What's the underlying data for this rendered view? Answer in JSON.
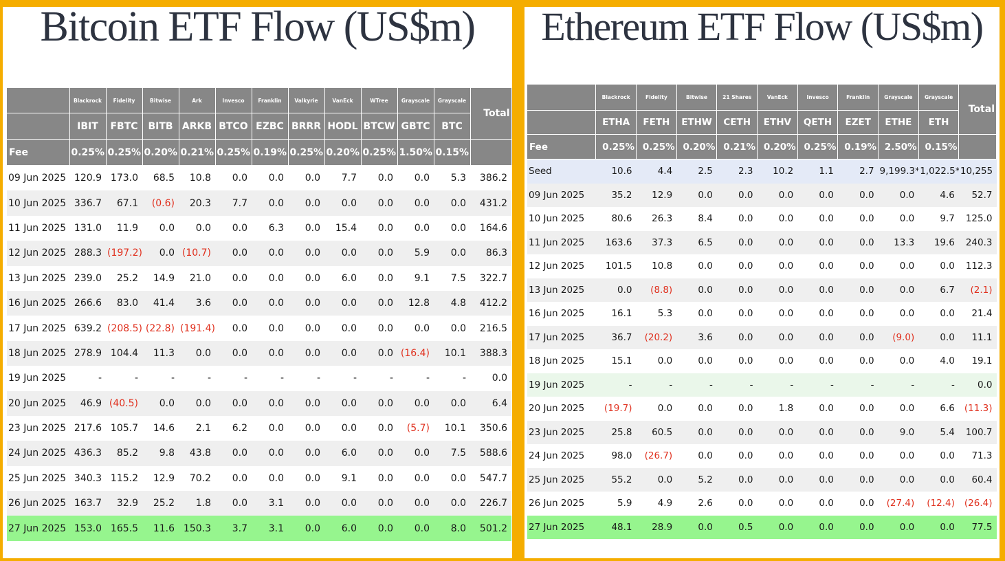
{
  "btc": {
    "title": "Bitcoin ETF Flow (US$m)",
    "total_label": "Total",
    "fee_label": "Fee",
    "issuers": [
      "Blackrock",
      "Fidelity",
      "Bitwise",
      "Ark",
      "Invesco",
      "Franklin",
      "Valkyrie",
      "VanEck",
      "WTree",
      "Grayscale",
      "Grayscale"
    ],
    "tickers": [
      "IBIT",
      "FBTC",
      "BITB",
      "ARKB",
      "BTCO",
      "EZBC",
      "BRRR",
      "HODL",
      "BTCW",
      "GBTC",
      "BTC"
    ],
    "fees": [
      "0.25%",
      "0.25%",
      "0.20%",
      "0.21%",
      "0.25%",
      "0.19%",
      "0.25%",
      "0.20%",
      "0.25%",
      "1.50%",
      "0.15%"
    ],
    "rows": [
      {
        "date": "09 Jun 2025",
        "values": [
          "120.9",
          "173.0",
          "68.5",
          "10.8",
          "0.0",
          "0.0",
          "0.0",
          "7.7",
          "0.0",
          "0.0",
          "5.3"
        ],
        "total": "386.2",
        "style": ""
      },
      {
        "date": "10 Jun 2025",
        "values": [
          "336.7",
          "67.1",
          "(0.6)",
          "20.3",
          "7.7",
          "0.0",
          "0.0",
          "0.0",
          "0.0",
          "0.0",
          "0.0"
        ],
        "total": "431.2",
        "style": ""
      },
      {
        "date": "11 Jun 2025",
        "values": [
          "131.0",
          "11.9",
          "0.0",
          "0.0",
          "0.0",
          "6.3",
          "0.0",
          "15.4",
          "0.0",
          "0.0",
          "0.0"
        ],
        "total": "164.6",
        "style": ""
      },
      {
        "date": "12 Jun 2025",
        "values": [
          "288.3",
          "(197.2)",
          "0.0",
          "(10.7)",
          "0.0",
          "0.0",
          "0.0",
          "0.0",
          "0.0",
          "5.9",
          "0.0"
        ],
        "total": "86.3",
        "style": ""
      },
      {
        "date": "13 Jun 2025",
        "values": [
          "239.0",
          "25.2",
          "14.9",
          "21.0",
          "0.0",
          "0.0",
          "0.0",
          "6.0",
          "0.0",
          "9.1",
          "7.5"
        ],
        "total": "322.7",
        "style": ""
      },
      {
        "date": "16 Jun 2025",
        "values": [
          "266.6",
          "83.0",
          "41.4",
          "3.6",
          "0.0",
          "0.0",
          "0.0",
          "0.0",
          "0.0",
          "12.8",
          "4.8"
        ],
        "total": "412.2",
        "style": ""
      },
      {
        "date": "17 Jun 2025",
        "values": [
          "639.2",
          "(208.5)",
          "(22.8)",
          "(191.4)",
          "0.0",
          "0.0",
          "0.0",
          "0.0",
          "0.0",
          "0.0",
          "0.0"
        ],
        "total": "216.5",
        "style": ""
      },
      {
        "date": "18 Jun 2025",
        "values": [
          "278.9",
          "104.4",
          "11.3",
          "0.0",
          "0.0",
          "0.0",
          "0.0",
          "0.0",
          "0.0",
          "(16.4)",
          "10.1"
        ],
        "total": "388.3",
        "style": ""
      },
      {
        "date": "19 Jun 2025",
        "values": [
          "-",
          "-",
          "-",
          "-",
          "-",
          "-",
          "-",
          "-",
          "-",
          "-",
          "-"
        ],
        "total": "0.0",
        "style": ""
      },
      {
        "date": "20 Jun 2025",
        "values": [
          "46.9",
          "(40.5)",
          "0.0",
          "0.0",
          "0.0",
          "0.0",
          "0.0",
          "0.0",
          "0.0",
          "0.0",
          "0.0"
        ],
        "total": "6.4",
        "style": ""
      },
      {
        "date": "23 Jun 2025",
        "values": [
          "217.6",
          "105.7",
          "14.6",
          "2.1",
          "6.2",
          "0.0",
          "0.0",
          "0.0",
          "0.0",
          "(5.7)",
          "10.1"
        ],
        "total": "350.6",
        "style": ""
      },
      {
        "date": "24 Jun 2025",
        "values": [
          "436.3",
          "85.2",
          "9.8",
          "43.8",
          "0.0",
          "0.0",
          "0.0",
          "6.0",
          "0.0",
          "0.0",
          "7.5"
        ],
        "total": "588.6",
        "style": ""
      },
      {
        "date": "25 Jun 2025",
        "values": [
          "340.3",
          "115.2",
          "12.9",
          "70.2",
          "0.0",
          "0.0",
          "0.0",
          "9.1",
          "0.0",
          "0.0",
          "0.0"
        ],
        "total": "547.7",
        "style": ""
      },
      {
        "date": "26 Jun 2025",
        "values": [
          "163.7",
          "32.9",
          "25.2",
          "1.8",
          "0.0",
          "3.1",
          "0.0",
          "0.0",
          "0.0",
          "0.0",
          "0.0"
        ],
        "total": "226.7",
        "style": ""
      },
      {
        "date": "27 Jun 2025",
        "values": [
          "153.0",
          "165.5",
          "11.6",
          "150.3",
          "3.7",
          "3.1",
          "0.0",
          "6.0",
          "0.0",
          "0.0",
          "8.0"
        ],
        "total": "501.2",
        "style": "latest"
      }
    ]
  },
  "eth": {
    "title": "Ethereum ETF Flow (US$m)",
    "total_label": "Total",
    "fee_label": "Fee",
    "issuers": [
      "Blackrock",
      "Fidelity",
      "Bitwise",
      "21 Shares",
      "VanEck",
      "Invesco",
      "Franklin",
      "Grayscale",
      "Grayscale"
    ],
    "tickers": [
      "ETHA",
      "FETH",
      "ETHW",
      "CETH",
      "ETHV",
      "QETH",
      "EZET",
      "ETHE",
      "ETH"
    ],
    "fees": [
      "0.25%",
      "0.25%",
      "0.20%",
      "0.21%",
      "0.20%",
      "0.25%",
      "0.19%",
      "2.50%",
      "0.15%"
    ],
    "rows": [
      {
        "date": "Seed",
        "values": [
          "10.6",
          "4.4",
          "2.5",
          "2.3",
          "10.2",
          "1.1",
          "2.7",
          "9,199.3*",
          "1,022.5*"
        ],
        "total": "10,255",
        "style": "seed"
      },
      {
        "date": "09 Jun 2025",
        "values": [
          "35.2",
          "12.9",
          "0.0",
          "0.0",
          "0.0",
          "0.0",
          "0.0",
          "0.0",
          "4.6"
        ],
        "total": "52.7",
        "style": ""
      },
      {
        "date": "10 Jun 2025",
        "values": [
          "80.6",
          "26.3",
          "8.4",
          "0.0",
          "0.0",
          "0.0",
          "0.0",
          "0.0",
          "9.7"
        ],
        "total": "125.0",
        "style": ""
      },
      {
        "date": "11 Jun 2025",
        "values": [
          "163.6",
          "37.3",
          "6.5",
          "0.0",
          "0.0",
          "0.0",
          "0.0",
          "13.3",
          "19.6"
        ],
        "total": "240.3",
        "style": ""
      },
      {
        "date": "12 Jun 2025",
        "values": [
          "101.5",
          "10.8",
          "0.0",
          "0.0",
          "0.0",
          "0.0",
          "0.0",
          "0.0",
          "0.0"
        ],
        "total": "112.3",
        "style": ""
      },
      {
        "date": "13 Jun 2025",
        "values": [
          "0.0",
          "(8.8)",
          "0.0",
          "0.0",
          "0.0",
          "0.0",
          "0.0",
          "0.0",
          "6.7"
        ],
        "total": "(2.1)",
        "style": ""
      },
      {
        "date": "16 Jun 2025",
        "values": [
          "16.1",
          "5.3",
          "0.0",
          "0.0",
          "0.0",
          "0.0",
          "0.0",
          "0.0",
          "0.0"
        ],
        "total": "21.4",
        "style": ""
      },
      {
        "date": "17 Jun 2025",
        "values": [
          "36.7",
          "(20.2)",
          "3.6",
          "0.0",
          "0.0",
          "0.0",
          "0.0",
          "(9.0)",
          "0.0"
        ],
        "total": "11.1",
        "style": ""
      },
      {
        "date": "18 Jun 2025",
        "values": [
          "15.1",
          "0.0",
          "0.0",
          "0.0",
          "0.0",
          "0.0",
          "0.0",
          "0.0",
          "4.0"
        ],
        "total": "19.1",
        "style": ""
      },
      {
        "date": "19 Jun 2025",
        "values": [
          "-",
          "-",
          "-",
          "-",
          "-",
          "-",
          "-",
          "-",
          "-"
        ],
        "total": "0.0",
        "style": "holiday"
      },
      {
        "date": "20 Jun 2025",
        "values": [
          "(19.7)",
          "0.0",
          "0.0",
          "0.0",
          "1.8",
          "0.0",
          "0.0",
          "0.0",
          "6.6"
        ],
        "total": "(11.3)",
        "style": ""
      },
      {
        "date": "23 Jun 2025",
        "values": [
          "25.8",
          "60.5",
          "0.0",
          "0.0",
          "0.0",
          "0.0",
          "0.0",
          "9.0",
          "5.4"
        ],
        "total": "100.7",
        "style": ""
      },
      {
        "date": "24 Jun 2025",
        "values": [
          "98.0",
          "(26.7)",
          "0.0",
          "0.0",
          "0.0",
          "0.0",
          "0.0",
          "0.0",
          "0.0"
        ],
        "total": "71.3",
        "style": ""
      },
      {
        "date": "25 Jun 2025",
        "values": [
          "55.2",
          "0.0",
          "5.2",
          "0.0",
          "0.0",
          "0.0",
          "0.0",
          "0.0",
          "0.0"
        ],
        "total": "60.4",
        "style": ""
      },
      {
        "date": "26 Jun 2025",
        "values": [
          "5.9",
          "4.9",
          "2.6",
          "0.0",
          "0.0",
          "0.0",
          "0.0",
          "(27.4)",
          "(12.4)"
        ],
        "total": "(26.4)",
        "style": ""
      },
      {
        "date": "27 Jun 2025",
        "values": [
          "48.1",
          "28.9",
          "0.0",
          "0.5",
          "0.0",
          "0.0",
          "0.0",
          "0.0",
          "0.0"
        ],
        "total": "77.5",
        "style": "latest"
      }
    ]
  },
  "colors": {
    "frame": "#f5ad00",
    "header": "#878787",
    "negative": "#e0301e",
    "latest_row": "#96f58e",
    "seed_row": "#e4eaf7",
    "title": "#2d3340"
  }
}
